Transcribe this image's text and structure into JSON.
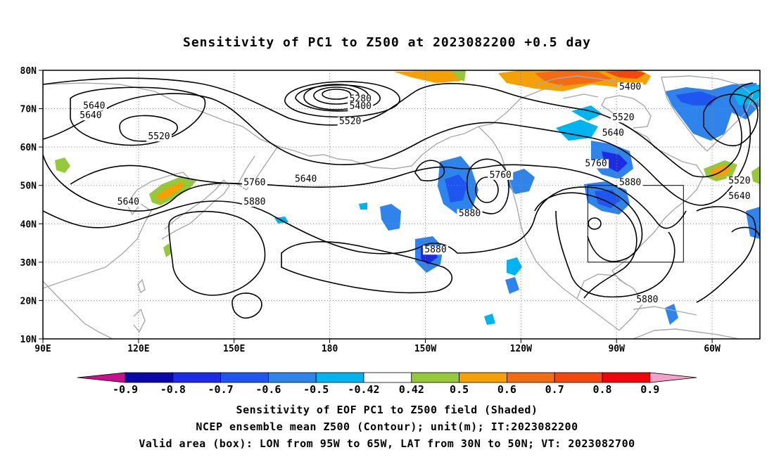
{
  "title": "Sensitivity of PC1 to Z500 at 2023082200 +0.5 day",
  "lat_labels": [
    "80N",
    "70N",
    "60N",
    "50N",
    "40N",
    "30N",
    "20N",
    "10N"
  ],
  "lon_labels": [
    "90E",
    "120E",
    "150E",
    "180",
    "150W",
    "120W",
    "90W",
    "60W"
  ],
  "contour_labels": [
    {
      "text": "5640",
      "lon": 105,
      "lat": 70
    },
    {
      "text": "5640",
      "lon": 104,
      "lat": 67.5
    },
    {
      "text": "5520",
      "lon": 124,
      "lat": 62
    },
    {
      "text": "5280",
      "lon": 183,
      "lat": 71.8
    },
    {
      "text": "5400",
      "lon": 183,
      "lat": 69.9
    },
    {
      "text": "5520",
      "lon": 180,
      "lat": 66
    },
    {
      "text": "5400",
      "lon": 262,
      "lat": 75
    },
    {
      "text": "5520",
      "lon": 260,
      "lat": 67
    },
    {
      "text": "5640",
      "lon": 257,
      "lat": 63
    },
    {
      "text": "5640",
      "lon": 167,
      "lat": 51
    },
    {
      "text": "5760",
      "lon": 152,
      "lat": 50
    },
    {
      "text": "5880",
      "lon": 152,
      "lat": 45
    },
    {
      "text": "5640",
      "lon": 115,
      "lat": 45
    },
    {
      "text": "5760",
      "lon": 224,
      "lat": 52
    },
    {
      "text": "5880",
      "lon": 215,
      "lat": 42
    },
    {
      "text": "5880",
      "lon": 205,
      "lat": 32.5
    },
    {
      "text": "5760",
      "lon": 252,
      "lat": 55
    },
    {
      "text": "5880",
      "lon": 262,
      "lat": 50
    },
    {
      "text": "5520",
      "lon": 294,
      "lat": 50.5
    },
    {
      "text": "5640",
      "lon": 294,
      "lat": 46.5
    },
    {
      "text": "5880",
      "lon": 267,
      "lat": 19.5
    }
  ],
  "colorbar": {
    "labels": [
      "-0.9",
      "-0.8",
      "-0.7",
      "-0.6",
      "-0.5",
      "-0.42",
      "0.42",
      "0.5",
      "0.6",
      "0.7",
      "0.8",
      "0.9"
    ],
    "colors": [
      "#c8108c",
      "#0a08a8",
      "#1b2be6",
      "#1f56f0",
      "#2f84ec",
      "#00b4f0",
      "#ffffff",
      "#96c83c",
      "#f5a005",
      "#f36c14",
      "#f5460c",
      "#f0060a",
      "#f4a0c8"
    ]
  },
  "valid_box": {
    "lon_min": -95,
    "lon_max": -65,
    "lat_min": 30,
    "lat_max": 50
  },
  "captions": [
    "Sensitivity of EOF PC1 to Z500 field (Shaded)",
    "NCEP ensemble mean Z500 (Contour); unit(m); IT:2023082200",
    "Valid area (box): LON from 95W to 65W, LAT from 30N to 50N; VT: 2023082700"
  ]
}
